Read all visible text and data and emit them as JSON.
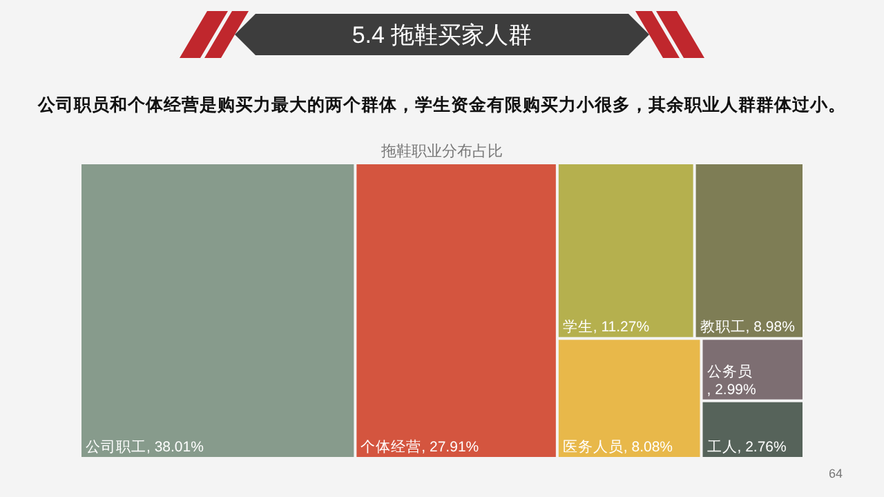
{
  "chart_data": {
    "type": "other",
    "title": "5.4 拖鞋买家人群",
    "subtitle": "公司职员和个体经营是购买力最大的两个群体，学生资金有限购买力小很多，其余职业人群群体过小。",
    "annotations": [
      "拖鞋职业分布占比",
      "64"
    ],
    "categories": [
      "公司职工",
      "个体经营",
      "学生",
      "教职工",
      "医务人员",
      "公务员",
      "工人"
    ],
    "values": [
      38.01,
      27.91,
      11.27,
      8.98,
      8.08,
      2.99,
      2.76
    ],
    "colors": [
      "#879b8c",
      "#d4553f",
      "#b5b04e",
      "#7e7d55",
      "#e8b84a",
      "#7d6e72",
      "#56635a"
    ],
    "value_labels": [
      ", 38.01%",
      ", 27.91%",
      ", 11.27%",
      ", 8.98%",
      ", 8.08%",
      ", 2.99%",
      ", 2.76%"
    ]
  }
}
